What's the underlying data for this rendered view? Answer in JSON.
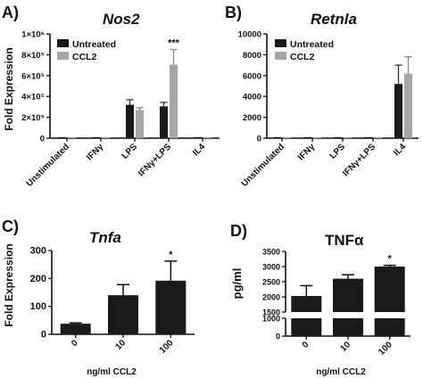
{
  "chart_data": [
    {
      "panel": "A)",
      "title": "Nos2",
      "type": "bar",
      "ylabel": "Fold Expression",
      "ylim": [
        0,
        1000000
      ],
      "yticks": [
        "0",
        "2×10⁵",
        "4×10⁵",
        "6×10⁵",
        "8×10⁵",
        "1×10⁶"
      ],
      "categories": [
        "Unstimulated",
        "IFNγ",
        "LPS",
        "IFNγ+LPS",
        "IL4"
      ],
      "series": [
        {
          "name": "Untreated",
          "color": "#1a1a1a",
          "values": [
            0,
            0,
            320000,
            305000,
            0
          ],
          "errors": [
            0,
            0,
            48000,
            38000,
            0
          ]
        },
        {
          "name": "CCL2",
          "color": "#a6a6a6",
          "values": [
            0,
            0,
            270000,
            705000,
            0
          ],
          "errors": [
            0,
            0,
            22000,
            145000,
            0
          ]
        }
      ],
      "annotations": [
        {
          "category": "IFNγ+LPS",
          "text": "***"
        }
      ],
      "legend": "top-left"
    },
    {
      "panel": "B)",
      "title": "Retnla",
      "type": "bar",
      "ylabel": "",
      "ylim": [
        0,
        10000
      ],
      "yticks": [
        "0",
        "2000",
        "4000",
        "6000",
        "8000",
        "10000"
      ],
      "categories": [
        "Unstimulated",
        "IFNγ",
        "LPS",
        "IFNγ+LPS",
        "IL4"
      ],
      "series": [
        {
          "name": "Untreated",
          "color": "#1a1a1a",
          "values": [
            0,
            0,
            0,
            0,
            5200
          ],
          "errors": [
            0,
            0,
            0,
            0,
            1800
          ]
        },
        {
          "name": "CCL2",
          "color": "#a6a6a6",
          "values": [
            0,
            0,
            0,
            0,
            6200
          ],
          "errors": [
            0,
            0,
            0,
            0,
            1600
          ]
        }
      ],
      "legend": "top-left"
    },
    {
      "panel": "C)",
      "title": "Tnfa",
      "type": "bar",
      "ylabel": "Fold Expression",
      "xlabel": "ng/ml CCL2",
      "ylim": [
        0,
        300
      ],
      "yticks": [
        "0",
        "100",
        "200",
        "300"
      ],
      "categories": [
        "0",
        "10",
        "100"
      ],
      "series": [
        {
          "color": "#1a1a1a",
          "values": [
            38,
            140,
            192
          ],
          "errors": [
            3,
            38,
            70
          ]
        }
      ],
      "annotations": [
        {
          "category": "100",
          "text": "*"
        }
      ]
    },
    {
      "panel": "D)",
      "title": "TNFα",
      "type": "bar",
      "ylabel": "pg/ml",
      "xlabel": "ng/ml CCL2",
      "broken_axis": true,
      "yticks": [
        "0",
        "1000",
        "1500",
        "2000",
        "2500",
        "3000",
        "3500"
      ],
      "categories": [
        "0",
        "10",
        "100"
      ],
      "series": [
        {
          "color": "#1a1a1a",
          "values": [
            2030,
            2600,
            3000
          ],
          "errors": [
            340,
            130,
            40
          ]
        }
      ],
      "annotations": [
        {
          "category": "100",
          "text": "*"
        }
      ]
    }
  ]
}
